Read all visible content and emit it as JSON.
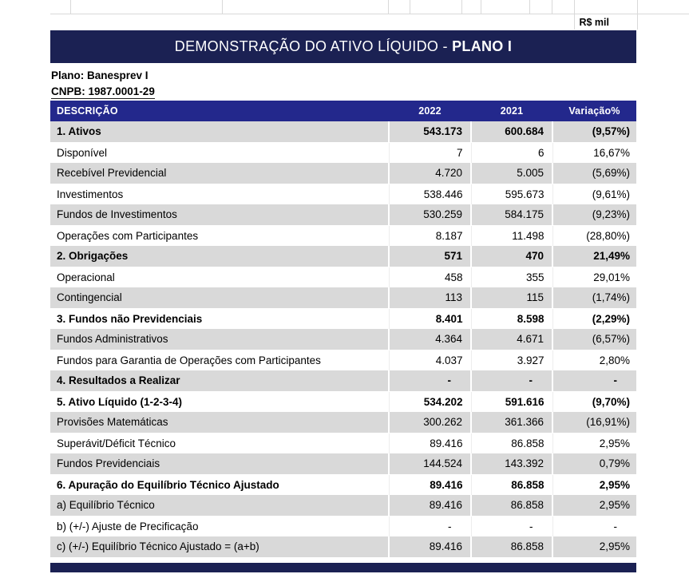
{
  "meta": {
    "unit": "R$ mil"
  },
  "title": {
    "main": "DEMONSTRAÇÃO DO ATIVO LÍQUIDO - ",
    "highlight": "PLANO I"
  },
  "plan": {
    "name_line": "Plano: Banesprev I",
    "cnpb_line": "CNPB: 1987.0001-29"
  },
  "table": {
    "headers": [
      "DESCRIÇÃO",
      "2022",
      "2021",
      "Variação%"
    ],
    "rows": [
      {
        "desc": "1. Ativos",
        "y2022": "543.173",
        "y2021": "600.684",
        "variation": "(9,57%)",
        "bold": true
      },
      {
        "desc": "Disponível",
        "y2022": "7",
        "y2021": "6",
        "variation": "16,67%",
        "bold": false
      },
      {
        "desc": "Recebível Previdencial",
        "y2022": "4.720",
        "y2021": "5.005",
        "variation": "(5,69%)",
        "bold": false
      },
      {
        "desc": "Investimentos",
        "y2022": "538.446",
        "y2021": "595.673",
        "variation": "(9,61%)",
        "bold": false
      },
      {
        "desc": "Fundos de Investimentos",
        "y2022": "530.259",
        "y2021": "584.175",
        "variation": "(9,23%)",
        "bold": false
      },
      {
        "desc": "Operações com Participantes",
        "y2022": "8.187",
        "y2021": "11.498",
        "variation": "(28,80%)",
        "bold": false
      },
      {
        "desc": "2. Obrigações",
        "y2022": "571",
        "y2021": "470",
        "variation": "21,49%",
        "bold": true
      },
      {
        "desc": "Operacional",
        "y2022": "458",
        "y2021": "355",
        "variation": "29,01%",
        "bold": false
      },
      {
        "desc": "Contingencial",
        "y2022": "113",
        "y2021": "115",
        "variation": "(1,74%)",
        "bold": false
      },
      {
        "desc": "3. Fundos não Previdenciais",
        "y2022": "8.401",
        "y2021": "8.598",
        "variation": "(2,29%)",
        "bold": true
      },
      {
        "desc": "Fundos Administrativos",
        "y2022": "4.364",
        "y2021": "4.671",
        "variation": "(6,57%)",
        "bold": false
      },
      {
        "desc": "Fundos para Garantia de Operações com Participantes",
        "y2022": "4.037",
        "y2021": "3.927",
        "variation": "2,80%",
        "bold": false
      },
      {
        "desc": "4. Resultados a Realizar",
        "y2022": "-",
        "y2021": "-",
        "variation": "-",
        "bold": true
      },
      {
        "desc": "5. Ativo Líquido (1-2-3-4)",
        "y2022": "534.202",
        "y2021": "591.616",
        "variation": "(9,70%)",
        "bold": true
      },
      {
        "desc": "Provisões Matemáticas",
        "y2022": "300.262",
        "y2021": "361.366",
        "variation": "(16,91%)",
        "bold": false
      },
      {
        "desc": "Superávit/Déficit Técnico",
        "y2022": "89.416",
        "y2021": "86.858",
        "variation": "2,95%",
        "bold": false
      },
      {
        "desc": "Fundos Previdenciais",
        "y2022": "144.524",
        "y2021": "143.392",
        "variation": "0,79%",
        "bold": false
      },
      {
        "desc": "6. Apuração do Equilíbrio Técnico Ajustado",
        "y2022": "89.416",
        "y2021": "86.858",
        "variation": "2,95%",
        "bold": true
      },
      {
        "desc": "a) Equilíbrio Técnico",
        "y2022": "89.416",
        "y2021": "86.858",
        "variation": "2,95%",
        "bold": false
      },
      {
        "desc": "b) (+/-) Ajuste de Precificação",
        "y2022": "-",
        "y2021": "-",
        "variation": "-",
        "bold": false
      },
      {
        "desc": "c) (+/-) Equilíbrio Técnico Ajustado = (a+b)",
        "y2022": "89.416",
        "y2021": "86.858",
        "variation": "2,95%",
        "bold": false
      }
    ]
  },
  "colors": {
    "navy": "#1B2153",
    "header_blue": "#23288C",
    "stripe": "#D9D9D9",
    "text": "#000000"
  }
}
